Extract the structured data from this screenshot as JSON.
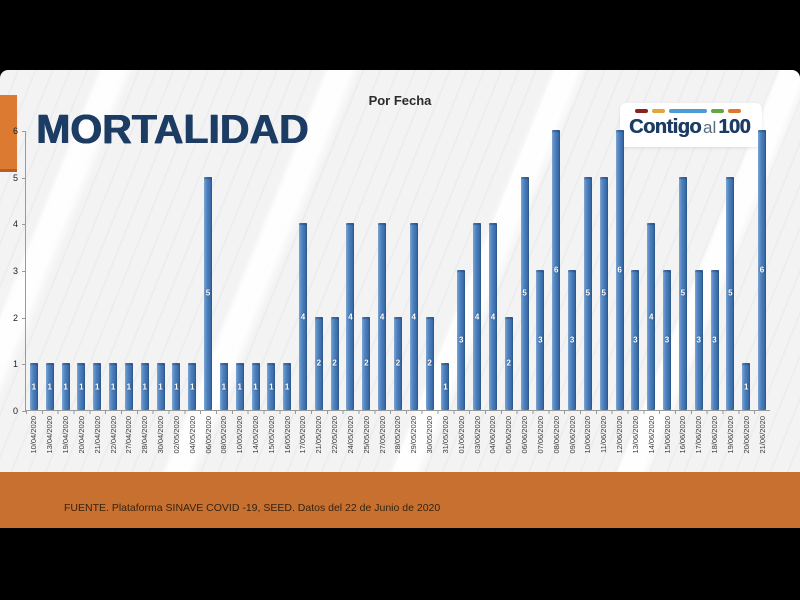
{
  "slide": {
    "title": "MORTALIDAD",
    "subtitle": "Por Fecha",
    "source": "FUENTE. Plataforma SINAVE COVID -19, SEED. Datos del 22 de Junio de 2020",
    "logo": {
      "part1": "Contigo",
      "part2": "al",
      "part3": "100",
      "dashes": [
        {
          "name": "dash-dark-red",
          "color": "#8e1f1f",
          "width": 13
        },
        {
          "name": "dash-amber",
          "color": "#e2a63a",
          "width": 13
        },
        {
          "name": "dash-blue",
          "color": "#4d9bd4",
          "width": 38
        },
        {
          "name": "dash-green",
          "color": "#63a844",
          "width": 13
        },
        {
          "name": "dash-orange",
          "color": "#e1762e",
          "width": 13
        }
      ]
    },
    "accent_color": "#dd7a31",
    "footer_color": "#c8702f",
    "title_color": "#1c3c63"
  },
  "chart_data": {
    "type": "bar",
    "title": "Por Fecha",
    "xlabel": "",
    "ylabel": "",
    "ylim": [
      0,
      6
    ],
    "yticks": [
      0,
      1,
      2,
      3,
      4,
      5,
      6
    ],
    "grid": false,
    "legend": "none",
    "data_labels": "center",
    "bar_color": "#4a7ebb",
    "label_color": "#ffffff",
    "categories": [
      "10/04/2020",
      "13/04/2020",
      "19/04/2020",
      "20/04/2020",
      "21/04/2020",
      "22/04/2020",
      "27/04/2020",
      "28/04/2020",
      "30/04/2020",
      "02/05/2020",
      "04/05/2020",
      "06/05/2020",
      "08/05/2020",
      "10/05/2020",
      "14/05/2020",
      "15/05/2020",
      "16/05/2020",
      "17/05/2020",
      "21/05/2020",
      "22/05/2020",
      "24/05/2020",
      "25/05/2020",
      "27/05/2020",
      "28/05/2020",
      "29/05/2020",
      "30/05/2020",
      "31/05/2020",
      "01/06/2020",
      "03/06/2020",
      "04/06/2020",
      "05/06/2020",
      "06/06/2020",
      "07/06/2020",
      "08/06/2020",
      "09/06/2020",
      "10/06/2020",
      "11/06/2020",
      "12/06/2020",
      "13/06/2020",
      "14/06/2020",
      "15/06/2020",
      "16/06/2020",
      "17/06/2020",
      "18/06/2020",
      "19/06/2020",
      "20/06/2020",
      "21/06/2020"
    ],
    "values": [
      1,
      1,
      1,
      1,
      1,
      1,
      1,
      1,
      1,
      1,
      1,
      5,
      1,
      1,
      1,
      1,
      1,
      4,
      2,
      2,
      4,
      2,
      4,
      2,
      4,
      2,
      1,
      3,
      4,
      4,
      2,
      5,
      3,
      6,
      3,
      5,
      5,
      6,
      3,
      4,
      3,
      5,
      3,
      3,
      5,
      1,
      6
    ]
  }
}
